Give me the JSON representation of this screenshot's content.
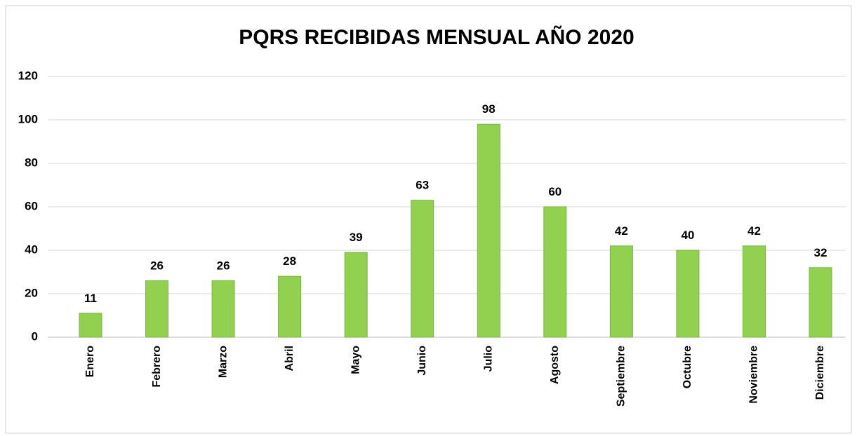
{
  "chart_data": {
    "type": "bar",
    "title": "PQRS RECIBIDAS MENSUAL AÑO 2020",
    "categories": [
      "Enero",
      "Febrero",
      "Marzo",
      "Abril",
      "Mayo",
      "Junio",
      "Julio",
      "Agosto",
      "Septiembre",
      "Octubre",
      "Noviembre",
      "Diciembre"
    ],
    "values": [
      11,
      26,
      26,
      28,
      39,
      63,
      98,
      60,
      42,
      40,
      42,
      32
    ],
    "color": "#92d050",
    "ylim": [
      0,
      120
    ],
    "yticks": [
      0,
      20,
      40,
      60,
      80,
      100,
      120
    ],
    "grid": true
  }
}
